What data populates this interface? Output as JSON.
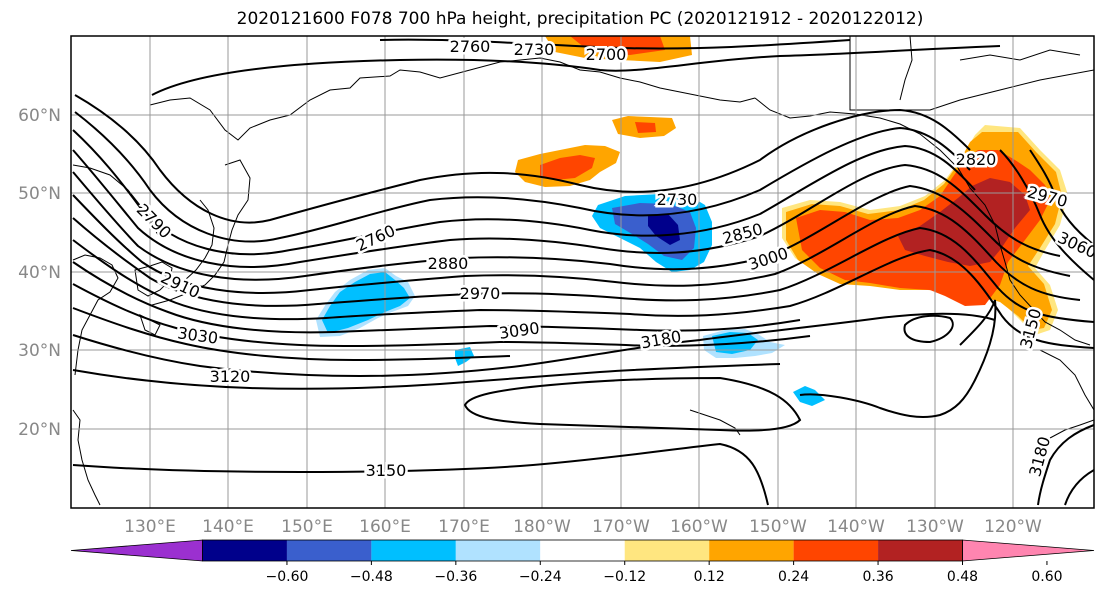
{
  "title": "2020121600 F078 700 hPa height, precipitation PC (2020121912 - 2020122012)",
  "lat_labels": [
    "60°N",
    "50°N",
    "40°N",
    "30°N",
    "20°N"
  ],
  "lon_labels": [
    "130°E",
    "140°E",
    "150°E",
    "160°E",
    "170°E",
    "180°W",
    "170°W",
    "160°W",
    "150°W",
    "140°W",
    "130°W",
    "120°W"
  ],
  "contour_labels": [
    "2760",
    "2730",
    "2700",
    "2790",
    "2910",
    "3030",
    "3120",
    "3150",
    "2760",
    "2880",
    "2970",
    "3090",
    "3180",
    "2730",
    "2850",
    "3000",
    "2820",
    "2970",
    "3060",
    "3150",
    "3180"
  ],
  "colorbar": {
    "colors": [
      "#9b30d0",
      "#00008b",
      "#3a5fcd",
      "#00bfff",
      "#b0e2ff",
      "#ffffff",
      "#ffe680",
      "#ffa500",
      "#ff4500",
      "#b22222",
      "#ff85b0"
    ],
    "tick_labels": [
      "−0.60",
      "−0.48",
      "−0.36",
      "−0.24",
      "−0.12",
      "0.12",
      "0.24",
      "0.36",
      "0.48",
      "0.60"
    ]
  }
}
